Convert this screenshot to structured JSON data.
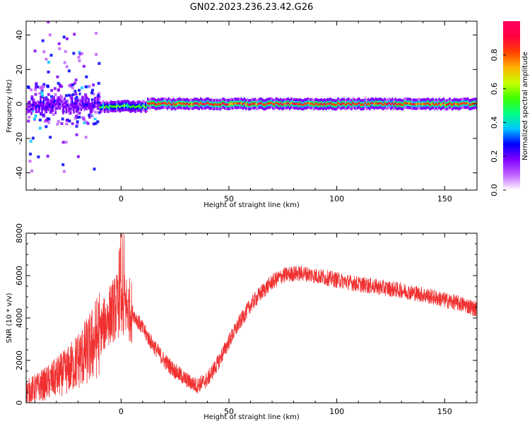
{
  "title": "GN02.2023.236.23.42.G26",
  "chart_data": [
    {
      "type": "heatmap",
      "xlabel": "Height of straight line (km)",
      "ylabel": "Frequency (Hz)",
      "xlim": [
        -44,
        165
      ],
      "ylim": [
        -50,
        48
      ],
      "xticks": [
        0,
        50,
        100,
        150
      ],
      "yticks": [
        -40,
        -20,
        0,
        20,
        40
      ],
      "colorbar": {
        "label": "Normalized spectral amplitude",
        "range": [
          0.0,
          1.0
        ],
        "ticks": [
          0.0,
          0.2,
          0.4,
          0.6,
          0.8
        ],
        "colors": [
          "#ffffff",
          "#c060ff",
          "#8000ff",
          "#0000ff",
          "#00c8ff",
          "#00ff80",
          "#40ff00",
          "#c8ff00",
          "#ffb000",
          "#ff4000",
          "#ff0040",
          "#ff0060"
        ]
      },
      "ridge": {
        "frequency_hz": 0,
        "segments": [
          {
            "x": [
              -44,
              -10
            ],
            "freq": -1,
            "amplitude": 0.35
          },
          {
            "x": [
              -10,
              12
            ],
            "freq": -1.5,
            "amplitude": 0.65
          },
          {
            "x": [
              12,
              165
            ],
            "freq": 0,
            "amplitude": 0.95
          }
        ]
      },
      "scatter_noise": {
        "x_range": [
          -44,
          -10
        ],
        "freq_range": [
          -40,
          48
        ],
        "amplitude": 0.25
      }
    },
    {
      "type": "line",
      "xlabel": "Height of straight line (km)",
      "ylabel": "SNR (10 * v/v)",
      "xlim": [
        -44,
        165
      ],
      "ylim": [
        0,
        8000
      ],
      "xticks": [
        0,
        50,
        100,
        150
      ],
      "yticks": [
        0,
        2000,
        4000,
        6000,
        8000
      ],
      "color": "#f03030",
      "series": [
        {
          "x": [
            -44,
            -35,
            -25,
            -15,
            -10,
            -5,
            0,
            5,
            10,
            15,
            20,
            25,
            30,
            35,
            40,
            45,
            50,
            55,
            60,
            65,
            70,
            75,
            80,
            85,
            90,
            95,
            100,
            110,
            120,
            130,
            140,
            150,
            160,
            165
          ],
          "values": [
            500,
            900,
            1500,
            2500,
            3300,
            4200,
            4800,
            4300,
            3500,
            2700,
            2000,
            1500,
            1100,
            800,
            1100,
            1900,
            2900,
            3800,
            4600,
            5200,
            5700,
            6000,
            6100,
            6100,
            6000,
            5900,
            5800,
            5600,
            5450,
            5300,
            5100,
            4850,
            4600,
            4400
          ]
        }
      ]
    }
  ]
}
